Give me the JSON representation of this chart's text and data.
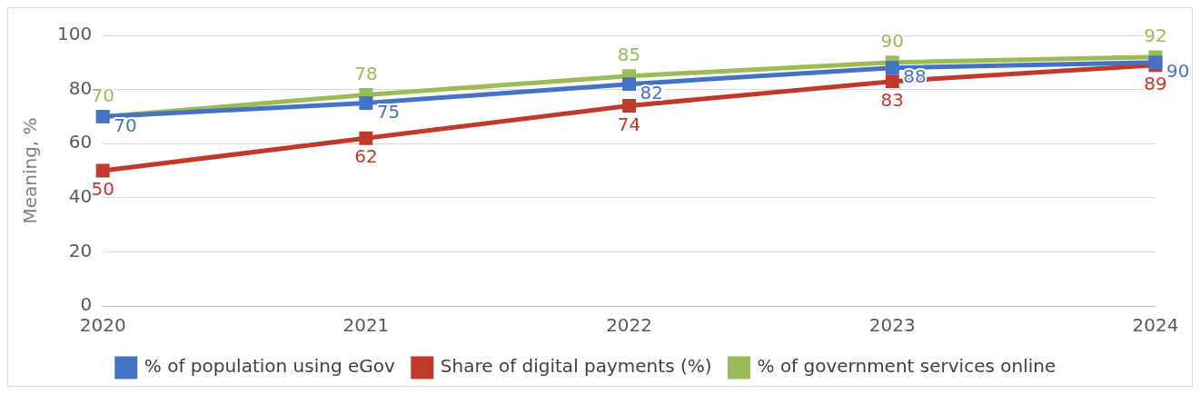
{
  "chart_data": {
    "type": "line",
    "ylabel": "Meaning, %",
    "categories": [
      "2020",
      "2021",
      "2022",
      "2023",
      "2024"
    ],
    "series": [
      {
        "name": "% of population using eGov",
        "color": "#4472c4",
        "values": [
          70,
          75,
          82,
          88,
          90
        ]
      },
      {
        "name": "Share of digital payments (%)",
        "color": "#c0392b",
        "values": [
          50,
          62,
          74,
          83,
          89
        ]
      },
      {
        "name": "% of government services online",
        "color": "#9bbb59",
        "values": [
          70,
          78,
          85,
          90,
          92
        ]
      }
    ],
    "ylim": [
      0,
      100
    ],
    "yticks": [
      0,
      20,
      40,
      60,
      80,
      100
    ],
    "grid": "y",
    "legend": "bottom",
    "marker": "square",
    "line_style": "solid",
    "data_labels": true
  }
}
